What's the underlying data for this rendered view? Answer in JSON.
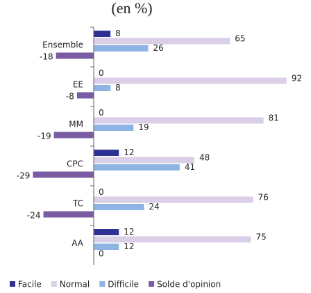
{
  "chart_data": {
    "type": "hbar",
    "title": "(en %)",
    "categories": [
      "Ensemble",
      "EE",
      "MM",
      "CPC",
      "TC",
      "AA"
    ],
    "series": [
      {
        "name": "Facile",
        "color": "#2e3192",
        "values": [
          8,
          0,
          0,
          12,
          0,
          12
        ]
      },
      {
        "name": "Normal",
        "color": "#d9cfe6",
        "values": [
          65,
          92,
          81,
          48,
          76,
          75
        ]
      },
      {
        "name": "Difficile",
        "color": "#8db4e2",
        "values": [
          26,
          8,
          19,
          41,
          24,
          12
        ]
      },
      {
        "name": "Solde d'opinion",
        "color": "#7a5ca3",
        "values": [
          -18,
          -8,
          -19,
          -29,
          -24,
          0
        ]
      }
    ],
    "xlim": [
      -30,
      95
    ],
    "legend": "bottom"
  }
}
